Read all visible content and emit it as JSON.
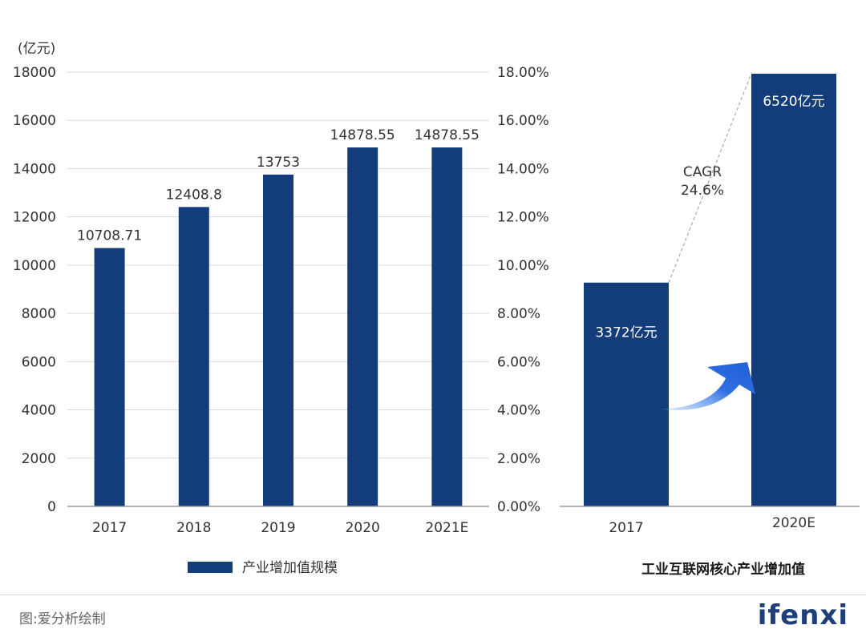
{
  "chart_data": [
    {
      "type": "bar",
      "title": "",
      "ylabel": "(亿元)",
      "ylim": [
        0,
        18000
      ],
      "y_ticks": [
        "0",
        "2000",
        "4000",
        "6000",
        "8000",
        "10000",
        "12000",
        "14000",
        "16000",
        "18000"
      ],
      "y2_ticks": [
        "0.00%",
        "2.00%",
        "4.00%",
        "6.00%",
        "8.00%",
        "10.00%",
        "12.00%",
        "14.00%",
        "16.00%",
        "18.00%"
      ],
      "categories": [
        "2017",
        "2018",
        "2019",
        "2020",
        "2021E"
      ],
      "series": [
        {
          "name": "产业增加值规模",
          "values": [
            10708.71,
            12408.8,
            13753,
            14878.55,
            14878.55
          ],
          "labels": [
            "10708.71",
            "12408.8",
            "13753",
            "14878.55",
            "14878.55"
          ]
        }
      ],
      "grid": true,
      "legend_position": "bottom"
    },
    {
      "type": "bar",
      "title": "工业互联网核心产业增加值",
      "categories": [
        "2017",
        "2020E"
      ],
      "values": [
        3372,
        6520
      ],
      "labels": [
        "3372亿元",
        "6520亿元"
      ],
      "annotation": {
        "line1": "CAGR",
        "line2": "24.6%"
      }
    }
  ],
  "footer": {
    "source": "图:爱分析绘制",
    "logo": "ifenxi"
  },
  "colors": {
    "bar": "#133d7a",
    "grid": "#d9d9d9",
    "axis": "#999999",
    "arrow": "#2f6fe0"
  }
}
